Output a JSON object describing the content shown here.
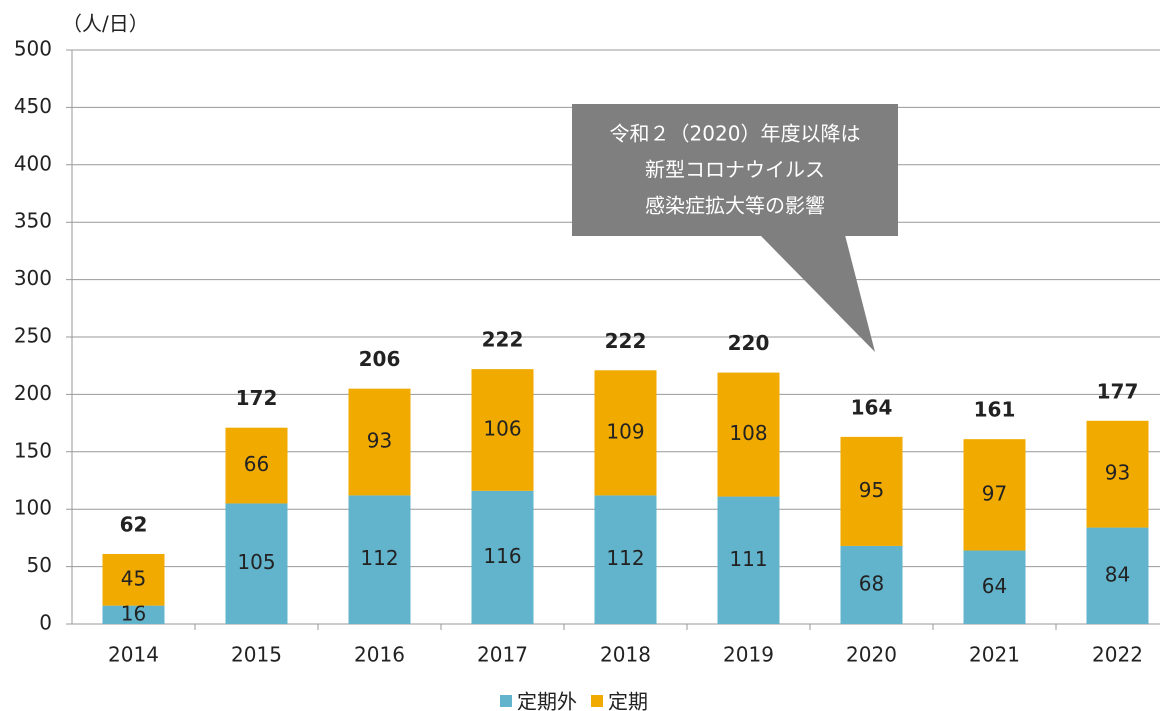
{
  "chart_data": {
    "type": "stacked_bar",
    "y_label": "（人/日）",
    "categories": [
      "2014",
      "2015",
      "2016",
      "2017",
      "2018",
      "2019",
      "2020",
      "2021",
      "2022"
    ],
    "series": [
      {
        "name": "定期外",
        "color": "#62b4cc",
        "values": [
          16,
          105,
          112,
          116,
          112,
          111,
          68,
          64,
          84
        ]
      },
      {
        "name": "定期",
        "color": "#f0aa00",
        "values": [
          45,
          66,
          93,
          106,
          109,
          108,
          95,
          97,
          93
        ]
      }
    ],
    "totals": [
      62,
      172,
      206,
      222,
      222,
      220,
      164,
      161,
      177
    ],
    "annotation": [
      "令和２（2020）年度以降は",
      "新型コロナウイルス",
      "感染症拡大等の影響"
    ],
    "ylim": [
      0,
      500
    ],
    "yticks": [
      0,
      50,
      100,
      150,
      200,
      250,
      300,
      350,
      400,
      450,
      500
    ],
    "grid": true,
    "legend": "bottom"
  }
}
